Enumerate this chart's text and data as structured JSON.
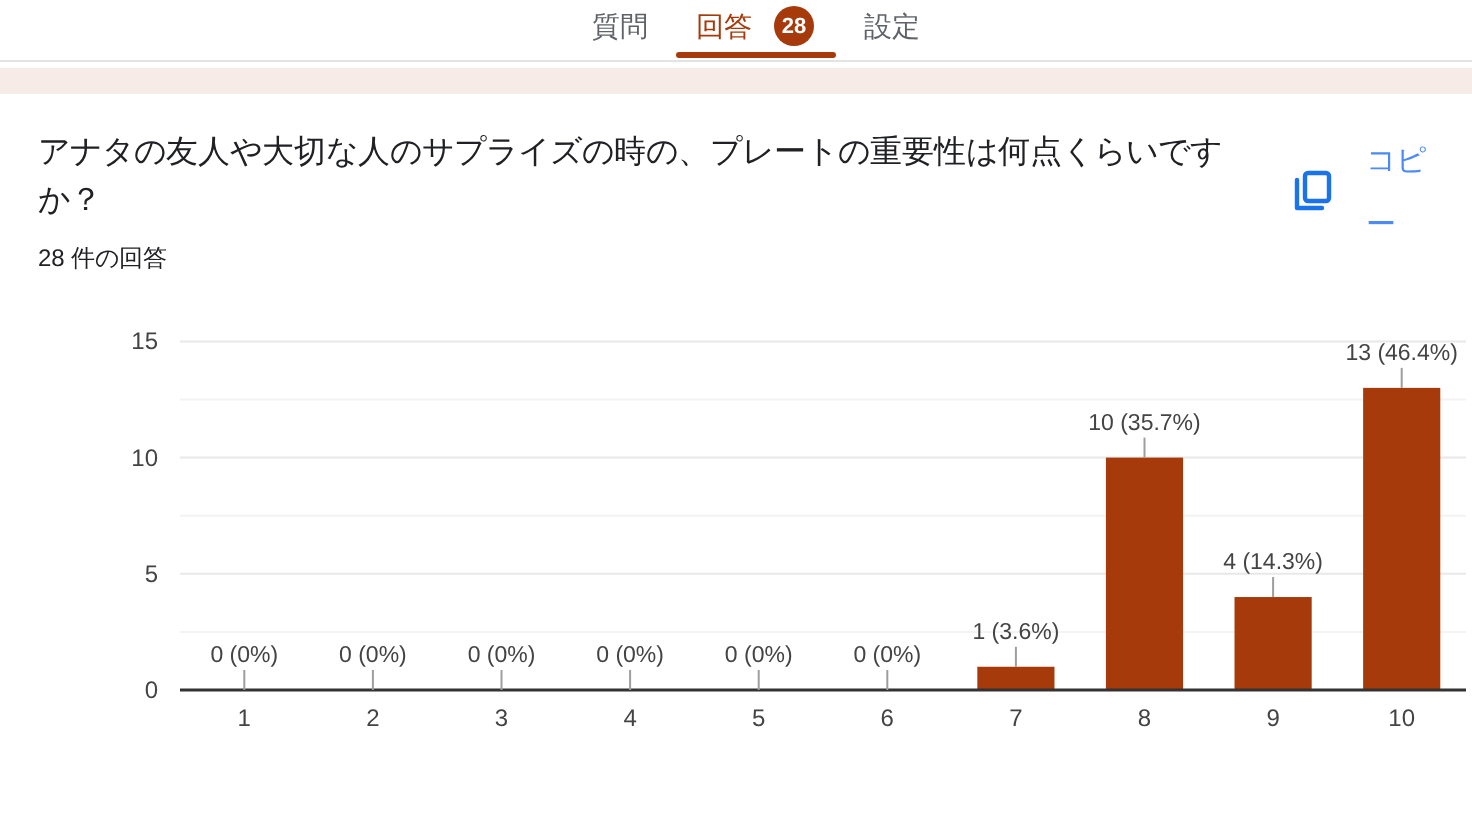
{
  "chart_data": {
    "type": "bar",
    "title": "アナタの友人や大切な人のサプライズの時の、プレートの重要性は何点くらいですか？",
    "subtitle": "28 件の回答",
    "annotations": [
      "質問",
      "回答",
      "28",
      "設定",
      "コピー"
    ],
    "categories": [
      "1",
      "2",
      "3",
      "4",
      "5",
      "6",
      "7",
      "8",
      "9",
      "10"
    ],
    "values": [
      0,
      0,
      0,
      0,
      0,
      0,
      1,
      10,
      4,
      13
    ],
    "color": "#a63a0a",
    "value_labels": [
      "0 (0%)",
      "0 (0%)",
      "0 (0%)",
      "0 (0%)",
      "0 (0%)",
      "0 (0%)",
      "1 (3.6%)",
      "10 (35.7%)",
      "4 (14.3%)",
      "13 (46.4%)"
    ],
    "ylim": [
      0,
      15
    ],
    "yticks": [
      0,
      {
        "value": 2.5,
        "label": null
      },
      5,
      {
        "value": 7.5,
        "label": null
      },
      10,
      {
        "value": 12.5,
        "label": null
      },
      15
    ],
    "grid": "y"
  }
}
